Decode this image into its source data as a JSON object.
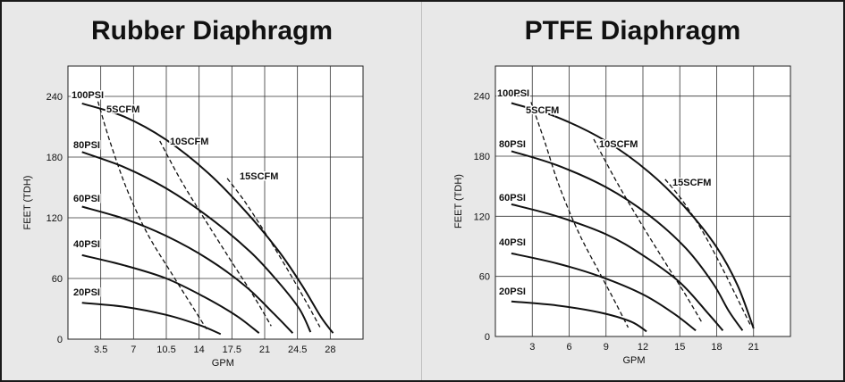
{
  "chart_data": [
    {
      "type": "line",
      "title": "Rubber Diaphragm",
      "xlabel": "GPM",
      "ylabel": "FEET (TDH)",
      "xlim": [
        0,
        31.5
      ],
      "ylim": [
        0,
        270
      ],
      "x_ticks": [
        3.5,
        7,
        10.5,
        14,
        17.5,
        21,
        24.5,
        28
      ],
      "x_tick_labels": [
        "3.5",
        "7",
        "10.5",
        "14",
        "17.5",
        "21",
        "24.5",
        "28"
      ],
      "y_ticks": [
        0,
        60,
        120,
        180,
        240
      ],
      "y_tick_labels": [
        "0",
        "60",
        "120",
        "180",
        "240"
      ],
      "grid": true,
      "series": [
        {
          "name": "100PSI",
          "style": "solid",
          "points": [
            [
              1.5,
              233
            ],
            [
              6,
              220
            ],
            [
              10.5,
              197
            ],
            [
              15,
              164
            ],
            [
              19,
              126
            ],
            [
              22.5,
              87
            ],
            [
              25,
              53
            ],
            [
              27,
              22
            ],
            [
              28.3,
              6
            ]
          ]
        },
        {
          "name": "80PSI",
          "style": "solid",
          "points": [
            [
              1.5,
              185
            ],
            [
              6,
              170
            ],
            [
              10.5,
              149
            ],
            [
              15,
              121
            ],
            [
              19.5,
              86
            ],
            [
              22.5,
              56
            ],
            [
              24.7,
              30
            ],
            [
              25.9,
              7
            ]
          ]
        },
        {
          "name": "60PSI",
          "style": "solid",
          "points": [
            [
              1.5,
              131
            ],
            [
              6,
              119
            ],
            [
              10.5,
              102
            ],
            [
              15,
              79
            ],
            [
              19,
              52
            ],
            [
              22,
              25
            ],
            [
              24,
              6
            ]
          ]
        },
        {
          "name": "40PSI",
          "style": "solid",
          "points": [
            [
              1.5,
              83
            ],
            [
              6,
              73
            ],
            [
              10.5,
              60
            ],
            [
              14.5,
              42
            ],
            [
              18,
              23
            ],
            [
              20.4,
              6
            ]
          ]
        },
        {
          "name": "20PSI",
          "style": "solid",
          "points": [
            [
              1.5,
              36
            ],
            [
              6,
              32
            ],
            [
              10.5,
              24
            ],
            [
              14,
              14
            ],
            [
              16.3,
              5
            ]
          ]
        },
        {
          "name": "5SCFM",
          "style": "dashed",
          "points": [
            [
              3.2,
              235
            ],
            [
              4.5,
              195
            ],
            [
              6.3,
              148
            ],
            [
              8.5,
              104
            ],
            [
              11.2,
              63
            ],
            [
              13.3,
              32
            ],
            [
              14.8,
              10
            ]
          ]
        },
        {
          "name": "10SCFM",
          "style": "dashed",
          "points": [
            [
              9.8,
              196
            ],
            [
              12,
              158
            ],
            [
              14.5,
              120
            ],
            [
              17.3,
              79
            ],
            [
              19.8,
              43
            ],
            [
              21.7,
              13
            ]
          ]
        },
        {
          "name": "15SCFM",
          "style": "dashed",
          "points": [
            [
              17,
              159
            ],
            [
              18.8,
              137
            ],
            [
              21,
              106
            ],
            [
              23.3,
              71
            ],
            [
              25.3,
              39
            ],
            [
              26.9,
              12
            ]
          ]
        }
      ],
      "labels": {
        "curves": [
          "100PSI",
          "80PSI",
          "60PSI",
          "40PSI",
          "20PSI"
        ],
        "air": [
          "5SCFM",
          "10SCFM",
          "15SCFM"
        ]
      }
    },
    {
      "type": "line",
      "title": "PTFE Diaphragm",
      "xlabel": "GPM",
      "ylabel": "FEET (TDH)",
      "xlim": [
        0,
        24
      ],
      "ylim": [
        0,
        270
      ],
      "x_ticks": [
        3,
        6,
        9,
        12,
        15,
        18,
        21
      ],
      "x_tick_labels": [
        "3",
        "6",
        "9",
        "12",
        "15",
        "18",
        "21"
      ],
      "y_ticks": [
        0,
        60,
        120,
        180,
        240
      ],
      "y_tick_labels": [
        "0",
        "60",
        "120",
        "180",
        "240"
      ],
      "grid": true,
      "series": [
        {
          "name": "100PSI",
          "style": "solid",
          "points": [
            [
              1.3,
              233
            ],
            [
              5,
              219
            ],
            [
              9,
              195
            ],
            [
              12.5,
              164
            ],
            [
              15.5,
              128
            ],
            [
              18,
              89
            ],
            [
              19.7,
              51
            ],
            [
              21,
              8
            ]
          ]
        },
        {
          "name": "80PSI",
          "style": "solid",
          "points": [
            [
              1.3,
              185
            ],
            [
              5,
              171
            ],
            [
              9,
              149
            ],
            [
              12.5,
              121
            ],
            [
              15.5,
              88
            ],
            [
              17.7,
              53
            ],
            [
              19,
              25
            ],
            [
              20.1,
              6
            ]
          ]
        },
        {
          "name": "60PSI",
          "style": "solid",
          "points": [
            [
              1.3,
              132
            ],
            [
              5,
              120
            ],
            [
              9,
              102
            ],
            [
              12,
              81
            ],
            [
              15,
              54
            ],
            [
              17.3,
              23
            ],
            [
              18.5,
              6
            ]
          ]
        },
        {
          "name": "40PSI",
          "style": "solid",
          "points": [
            [
              1.3,
              83
            ],
            [
              5,
              73
            ],
            [
              8.5,
              60
            ],
            [
              12,
              42
            ],
            [
              14.5,
              23
            ],
            [
              16.3,
              6
            ]
          ]
        },
        {
          "name": "20PSI",
          "style": "solid",
          "points": [
            [
              1.3,
              35
            ],
            [
              5,
              31
            ],
            [
              8.5,
              24
            ],
            [
              11,
              15
            ],
            [
              12.3,
              5
            ]
          ]
        },
        {
          "name": "5SCFM",
          "style": "dashed",
          "points": [
            [
              2.9,
              234
            ],
            [
              4,
              195
            ],
            [
              5.2,
              150
            ],
            [
              6.8,
              103
            ],
            [
              8.5,
              63
            ],
            [
              9.8,
              33
            ],
            [
              10.8,
              9
            ]
          ]
        },
        {
          "name": "10SCFM",
          "style": "dashed",
          "points": [
            [
              8,
              197
            ],
            [
              9.7,
              158
            ],
            [
              11.5,
              120
            ],
            [
              13.5,
              80
            ],
            [
              15.3,
              45
            ],
            [
              16.8,
              14
            ]
          ]
        },
        {
          "name": "15SCFM",
          "style": "dashed",
          "points": [
            [
              13.8,
              157
            ],
            [
              15.2,
              136
            ],
            [
              16.8,
              106
            ],
            [
              18.3,
              72
            ],
            [
              19.6,
              40
            ],
            [
              20.8,
              10
            ]
          ]
        }
      ],
      "labels": {
        "curves": [
          "100PSI",
          "80PSI",
          "60PSI",
          "40PSI",
          "20PSI"
        ],
        "air": [
          "5SCFM",
          "10SCFM",
          "15SCFM"
        ]
      }
    }
  ]
}
